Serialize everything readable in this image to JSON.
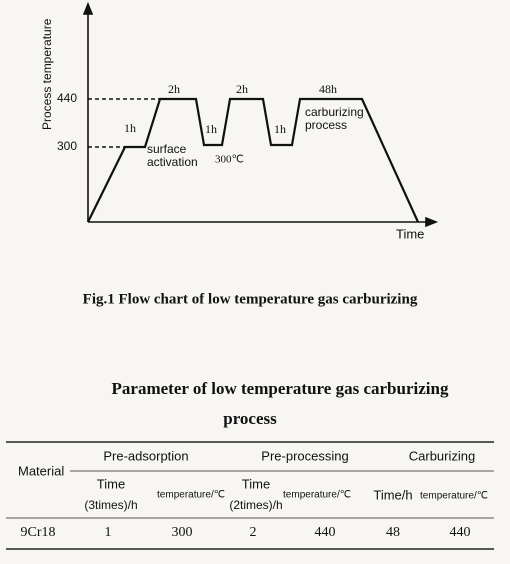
{
  "figure": {
    "y_axis_label": "Process temperature",
    "x_axis_label": "Time",
    "y_labels": [
      "440",
      "300"
    ],
    "segment_labels": [
      "1h",
      "2h",
      "1h",
      "2h",
      "1h",
      "48h"
    ],
    "annotations": {
      "surface_activation": [
        "surface",
        "activation"
      ],
      "temp_300": "300℃",
      "carburizing_process": [
        "carburizing",
        "process"
      ]
    },
    "caption": "Fig.1 Flow chart of low temperature gas carburizing"
  },
  "table": {
    "title": [
      "Parameter of low temperature gas carburizing",
      "process"
    ],
    "row_header": "Material",
    "groups": [
      "Pre-adsorption",
      "Pre-processing",
      "Carburizing"
    ],
    "subheaders": [
      [
        "Time",
        "(3times)/h"
      ],
      "temperature/℃",
      [
        "Time",
        "(2times)/h"
      ],
      "temperature/℃",
      "Time/h",
      "temperature/℃"
    ],
    "rows": [
      [
        "9Cr18",
        "1",
        "300",
        "2",
        "440",
        "48",
        "440"
      ]
    ]
  }
}
